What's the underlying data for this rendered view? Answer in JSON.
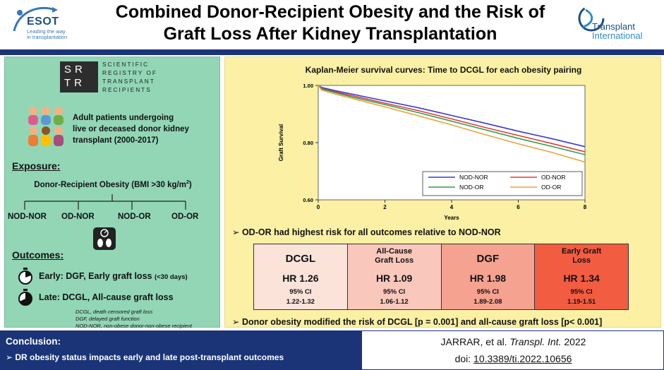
{
  "header": {
    "title_line1": "Combined Donor-Recipient Obesity and the Risk of",
    "title_line2": "Graft Loss After Kidney Transplantation",
    "esot_logo": {
      "name": "ESOT",
      "tagline_1": "Leading the way",
      "tagline_2": "in transplantation"
    },
    "journal_logo": {
      "line1": "Transplant",
      "line2": "International"
    },
    "bar_color": "#1b3478"
  },
  "left_panel": {
    "bg_color": "#92d6b6",
    "srtr_logo": {
      "mark_line1": "SR",
      "mark_line2": "TR",
      "words": [
        "SCIENTIFIC",
        "REGISTRY OF",
        "TRANSPLANT",
        "RECIPIENTS"
      ]
    },
    "population_lines": [
      "Adult patients undergoing",
      "live or deceased donor kidney",
      "transplant (2000-2017)"
    ],
    "exposure": {
      "heading": "Exposure:",
      "definition": "Donor-Recipient Obesity (BMI >30 kg/m",
      "definition_sup": "2",
      "definition_end": ")",
      "groups": [
        "NOD-NOR",
        "OD-NOR",
        "NOD-OR",
        "OD-OR"
      ]
    },
    "outcomes": {
      "heading": "Outcomes:",
      "early_main": "Early: DGF, Early graft loss ",
      "early_note": "(<30 days)",
      "late": "Late: DCGL, All-cause graft loss"
    },
    "abbreviations": [
      "DCGL, death censored graft loss",
      "DGF, delayed graft function",
      "NOD-NOR, non-obese donor-non-obese recipient"
    ]
  },
  "right_panel": {
    "bg_color": "#fbf0a4",
    "finding1": "OD-OR had highest risk for all outcomes relative to NOD-NOR",
    "finding2": "Donor obesity modified the risk of DCGL [p = 0.001] and all-cause graft loss [p< 0.001]",
    "hr_table": [
      {
        "name": "DCGL",
        "name2": "",
        "hr": "HR 1.26",
        "ci_label": "95% CI",
        "ci": "1.22-1.32",
        "color": "#fbe3da"
      },
      {
        "name": "All-Cause",
        "name2": "Graft Loss",
        "hr": "HR 1.09",
        "ci_label": "95% CI",
        "ci": "1.06-1.12",
        "color": "#f9c7bc"
      },
      {
        "name": "DGF",
        "name2": "",
        "hr": "HR 1.98",
        "ci_label": "95% CI",
        "ci": "1.89-2.08",
        "color": "#f6a291"
      },
      {
        "name": "Early Graft",
        "name2": "Loss",
        "hr": "HR 1.34",
        "ci_label": "95% CI",
        "ci": "1.19-1.51",
        "color": "#f25c41"
      }
    ]
  },
  "chart_data": {
    "type": "line",
    "title": "Kaplan-Meier survival curves: Time to DCGL for each obesity pairing",
    "xlabel": "Years",
    "ylabel": "Graft Survival",
    "xlim": [
      0,
      8
    ],
    "ylim": [
      0.6,
      1.0
    ],
    "x_ticks": [
      0,
      2,
      4,
      6,
      8
    ],
    "y_ticks": [
      0.6,
      0.8,
      1.0
    ],
    "x_tick_labels": [
      "0",
      "2",
      "4",
      "6",
      "8"
    ],
    "y_tick_labels": [
      "0.60",
      "0.80",
      "1.00"
    ],
    "grid": false,
    "legend_position": "bottom-right",
    "x": [
      0,
      0.1,
      0.5,
      1,
      2,
      3,
      4,
      5,
      6,
      7,
      8
    ],
    "series": [
      {
        "name": "NOD-NOR",
        "color": "#3a3ad0",
        "values": [
          1.0,
          0.993,
          0.982,
          0.97,
          0.946,
          0.922,
          0.895,
          0.868,
          0.84,
          0.814,
          0.786
        ]
      },
      {
        "name": "OD-NOR",
        "color": "#e23b3b",
        "values": [
          1.0,
          0.99,
          0.978,
          0.965,
          0.938,
          0.912,
          0.883,
          0.853,
          0.825,
          0.797,
          0.768
        ]
      },
      {
        "name": "NOD-OR",
        "color": "#2e9e4c",
        "values": [
          1.0,
          0.988,
          0.975,
          0.96,
          0.933,
          0.905,
          0.875,
          0.845,
          0.815,
          0.787,
          0.758
        ]
      },
      {
        "name": "OD-OR",
        "color": "#e8a33d",
        "values": [
          1.0,
          0.984,
          0.97,
          0.955,
          0.925,
          0.894,
          0.862,
          0.828,
          0.796,
          0.766,
          0.732
        ]
      }
    ]
  },
  "footer": {
    "conclusion_heading": "Conclusion:",
    "conclusion_text": "DR obesity status impacts early and late post-transplant outcomes",
    "citation_authors": "JARRAR, et al. ",
    "citation_journal": "Transpl. Int.",
    "citation_year": " 2022",
    "doi_prefix": "doi: ",
    "doi": "10.3389/ti.2022.10656"
  }
}
